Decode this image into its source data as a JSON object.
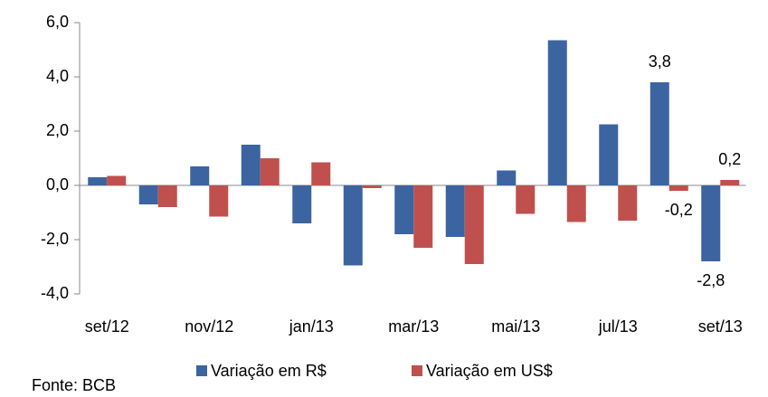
{
  "chart_data": {
    "type": "bar",
    "categories": [
      "set/12",
      null,
      "nov/12",
      null,
      "jan/13",
      null,
      "mar/13",
      null,
      "mai/13",
      null,
      "jul/13",
      null,
      "set/13"
    ],
    "series": [
      {
        "name": "Variação em R$",
        "color": "#3c64a0",
        "values": [
          0.3,
          -0.7,
          0.7,
          1.5,
          -1.4,
          -2.95,
          -1.8,
          -1.9,
          0.55,
          5.35,
          2.25,
          3.8,
          -2.8
        ],
        "value_labels": [
          null,
          null,
          null,
          null,
          null,
          null,
          null,
          null,
          null,
          null,
          null,
          "3,8",
          "-2,8"
        ]
      },
      {
        "name": "Variação em US$",
        "color": "#c0504d",
        "values": [
          0.35,
          -0.8,
          -1.15,
          1.0,
          0.85,
          -0.1,
          -2.3,
          -2.9,
          -1.05,
          -1.35,
          -1.3,
          -0.2,
          0.2
        ],
        "value_labels": [
          null,
          null,
          null,
          null,
          null,
          null,
          null,
          null,
          null,
          null,
          null,
          "-0,2",
          "0,2"
        ]
      }
    ],
    "ylim": [
      -4,
      6
    ],
    "yticks": [
      {
        "value": -4,
        "label": "-4,0"
      },
      {
        "value": -2,
        "label": "-2,0"
      },
      {
        "value": 0,
        "label": "0,0"
      },
      {
        "value": 2,
        "label": "2,0"
      },
      {
        "value": 4,
        "label": "4,0"
      },
      {
        "value": 6,
        "label": "6,0"
      }
    ],
    "source": "Fonte: BCB",
    "legend": "bottom"
  }
}
